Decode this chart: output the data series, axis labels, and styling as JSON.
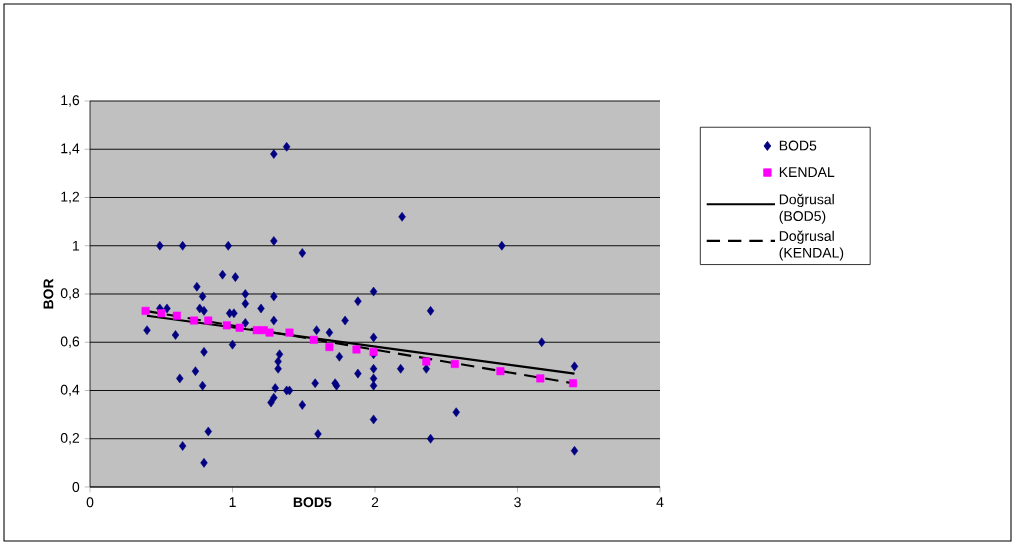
{
  "chart_data": {
    "type": "scatter",
    "xlabel": "BOD5",
    "ylabel": "BOR",
    "xlim": [
      0,
      4
    ],
    "xticks": [
      0,
      1,
      2,
      3,
      4
    ],
    "ylim": [
      0,
      1.6
    ],
    "yticks": [
      0,
      {
        "value": 0.2,
        "label": "0,2"
      },
      {
        "value": 0.4,
        "label": "0,4"
      },
      {
        "value": 0.6,
        "label": "0,6"
      },
      {
        "value": 0.8,
        "label": "0,8"
      },
      {
        "value": 1,
        "label": "1"
      },
      {
        "value": 1.2,
        "label": "1,2"
      },
      {
        "value": 1.4,
        "label": "1,4"
      },
      {
        "value": 1.6,
        "label": "1,6"
      }
    ],
    "grid": "y",
    "legend": "right",
    "series": [
      {
        "name": "BOD5",
        "marker": "diamond",
        "color": "#000080",
        "x": [
          0.4,
          0.49,
          0.65,
          0.97,
          1.29,
          1.29,
          1.38,
          0.49,
          0.54,
          0.6,
          0.75,
          0.79,
          0.77,
          0.8,
          0.8,
          0.74,
          0.63,
          0.79,
          0.83,
          0.65,
          0.8,
          0.93,
          1.02,
          1.09,
          1.09,
          1.2,
          1.29,
          0.98,
          1.01,
          1.09,
          1.29,
          1.0,
          1.33,
          1.32,
          1.32,
          1.3,
          1.38,
          1.27,
          1.29,
          1.49,
          2.19,
          1.99,
          1.88,
          1.79,
          2.39,
          1.59,
          1.68,
          1.99,
          1.75,
          1.99,
          2.18,
          2.36,
          1.88,
          1.99,
          1.99,
          1.99,
          1.58,
          1.72,
          1.73,
          1.4,
          1.49,
          1.99,
          1.6,
          2.39,
          2.89,
          3.17,
          3.4,
          2.57,
          3.4
        ],
        "values": [
          0.65,
          1.0,
          1.0,
          1.0,
          1.02,
          1.38,
          1.41,
          0.74,
          0.74,
          0.63,
          0.83,
          0.79,
          0.74,
          0.73,
          0.56,
          0.48,
          0.45,
          0.42,
          0.23,
          0.17,
          0.1,
          0.88,
          0.87,
          0.8,
          0.76,
          0.74,
          0.79,
          0.72,
          0.72,
          0.68,
          0.69,
          0.59,
          0.55,
          0.52,
          0.49,
          0.41,
          0.4,
          0.35,
          0.37,
          0.97,
          1.12,
          0.81,
          0.77,
          0.69,
          0.73,
          0.65,
          0.64,
          0.62,
          0.54,
          0.55,
          0.49,
          0.49,
          0.47,
          0.49,
          0.45,
          0.42,
          0.43,
          0.43,
          0.42,
          0.4,
          0.34,
          0.28,
          0.22,
          0.2,
          1.0,
          0.6,
          0.5,
          0.31,
          0.15
        ]
      },
      {
        "name": "KENDAL",
        "marker": "square",
        "color": "#ff00ff",
        "x": [
          0.39,
          0.5,
          0.61,
          0.73,
          0.83,
          0.96,
          1.05,
          1.17,
          1.22,
          1.26,
          1.4,
          1.57,
          1.68,
          1.87,
          1.99,
          2.36,
          2.56,
          2.88,
          3.16,
          3.39
        ],
        "values": [
          0.73,
          0.72,
          0.71,
          0.69,
          0.69,
          0.67,
          0.66,
          0.65,
          0.65,
          0.64,
          0.64,
          0.61,
          0.58,
          0.57,
          0.56,
          0.52,
          0.51,
          0.48,
          0.45,
          0.43
        ]
      },
      {
        "name": "Doğrusal (BOD5)",
        "type": "line",
        "line_style": "solid",
        "color": "#000000",
        "x": [
          0.4,
          3.4
        ],
        "values": [
          0.71,
          0.47
        ]
      },
      {
        "name": "Doğrusal (KENDAL)",
        "type": "line",
        "line_style": "dashed",
        "color": "#000000",
        "x": [
          0.39,
          3.39
        ],
        "values": [
          0.73,
          0.43
        ]
      }
    ]
  }
}
